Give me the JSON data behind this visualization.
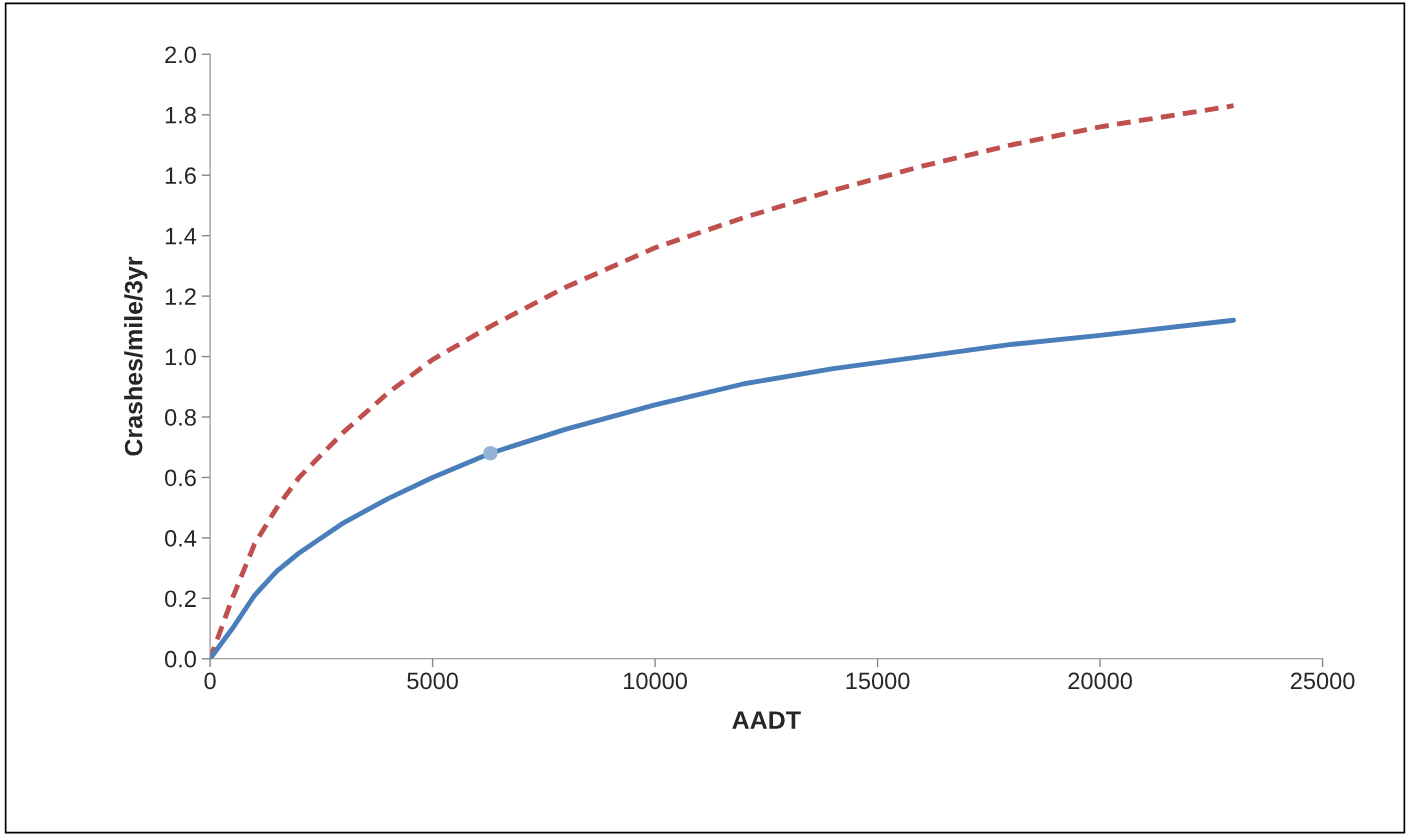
{
  "chart_data": {
    "type": "line",
    "xlabel": "AADT",
    "ylabel": "Crashes/mile/3yr",
    "series": [
      {
        "color": "#c0504d",
        "line_style": "dashed",
        "x": [
          0,
          500,
          1000,
          1500,
          2000,
          3000,
          4000,
          5000,
          6300,
          8000,
          10000,
          12000,
          14000,
          16000,
          18000,
          20000,
          23000
        ],
        "values": [
          0,
          0.2,
          0.38,
          0.5,
          0.6,
          0.75,
          0.88,
          0.99,
          1.1,
          1.23,
          1.36,
          1.46,
          1.55,
          1.63,
          1.7,
          1.76,
          1.83
        ]
      },
      {
        "color": "#4a7ebb",
        "line_style": "solid",
        "x": [
          0,
          500,
          1000,
          1500,
          2000,
          3000,
          4000,
          5000,
          6300,
          8000,
          10000,
          12000,
          14000,
          16000,
          18000,
          20000,
          23000
        ],
        "values": [
          0,
          0.1,
          0.21,
          0.29,
          0.35,
          0.45,
          0.53,
          0.6,
          0.68,
          0.76,
          0.84,
          0.91,
          0.96,
          1.0,
          1.04,
          1.07,
          1.12
        ]
      },
      {
        "type": "scatter",
        "color": "#95b3d7",
        "marker": "circle",
        "x": [
          6300
        ],
        "values": [
          0.68
        ]
      }
    ],
    "xlim": [
      0,
      25000
    ],
    "xticks": [
      0,
      5000,
      10000,
      15000,
      20000,
      25000
    ],
    "ylim": [
      0,
      2.0
    ],
    "yticks": [
      {
        "value": 0,
        "label": "0.0"
      },
      {
        "value": 0.2,
        "label": "0.2"
      },
      {
        "value": 0.4,
        "label": "0.4"
      },
      {
        "value": 0.6,
        "label": "0.6"
      },
      {
        "value": 0.8,
        "label": "0.8"
      },
      {
        "value": 1.0,
        "label": "1.0"
      },
      {
        "value": 1.2,
        "label": "1.2"
      },
      {
        "value": 1.4,
        "label": "1.4"
      },
      {
        "value": 1.6,
        "label": "1.6"
      },
      {
        "value": 1.8,
        "label": "1.8"
      },
      {
        "value": 2.0,
        "label": "2.0"
      }
    ],
    "grid": false,
    "legend": false
  }
}
